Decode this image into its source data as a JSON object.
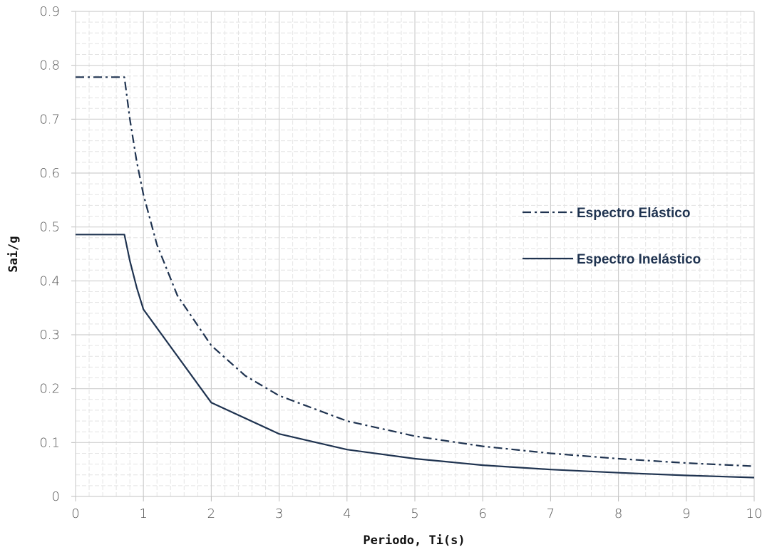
{
  "chart_data": {
    "type": "line",
    "xlabel": "Periodo, Ti(s)",
    "ylabel": "Sai/g",
    "xlim": [
      0,
      10
    ],
    "ylim": [
      0,
      0.9
    ],
    "xticks": [
      "0",
      "1",
      "2",
      "3",
      "4",
      "5",
      "6",
      "7",
      "8",
      "9",
      "10"
    ],
    "yticks": [
      "0",
      "0.1",
      "0.2",
      "0.3",
      "0.4",
      "0.5",
      "0.6",
      "0.7",
      "0.8",
      "0.9"
    ],
    "grid": true,
    "legend_position": "right",
    "series": [
      {
        "name": "Espectro Elástico",
        "style": "dash-dot",
        "color": "#1f3350",
        "x": [
          0,
          0.72,
          0.8,
          0.9,
          1,
          1.2,
          1.5,
          2,
          2.5,
          3,
          4,
          5,
          6,
          7,
          8,
          9,
          10
        ],
        "y": [
          0.778,
          0.778,
          0.7,
          0.622,
          0.56,
          0.467,
          0.373,
          0.28,
          0.224,
          0.187,
          0.14,
          0.112,
          0.093,
          0.08,
          0.07,
          0.062,
          0.056
        ]
      },
      {
        "name": "Espectro Inelástico",
        "style": "solid",
        "color": "#1f3350",
        "x": [
          0,
          0.72,
          0.8,
          0.9,
          1,
          2,
          3,
          4,
          5,
          6,
          7,
          8,
          9,
          10
        ],
        "y": [
          0.486,
          0.486,
          0.437,
          0.388,
          0.347,
          0.174,
          0.116,
          0.087,
          0.07,
          0.058,
          0.05,
          0.044,
          0.039,
          0.035
        ]
      }
    ]
  }
}
